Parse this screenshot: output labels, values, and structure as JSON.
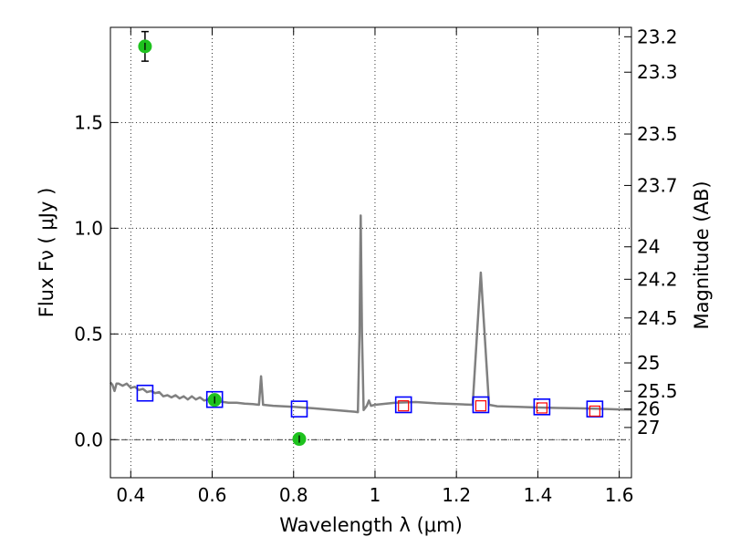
{
  "chart_data": {
    "type": "line",
    "xlabel": "Wavelength  λ (μm)",
    "ylabel": "Flux  Fν  ( μJy )",
    "ylabel_right": "Magnitude (AB)",
    "xlim": [
      0.35,
      1.63
    ],
    "ylim": [
      -0.18,
      1.95
    ],
    "grid": true,
    "x_ticks": [
      {
        "value": 0.4,
        "label": "0.4"
      },
      {
        "value": 0.6,
        "label": "0.6"
      },
      {
        "value": 0.8,
        "label": "0.8"
      },
      {
        "value": 1.0,
        "label": "1"
      },
      {
        "value": 1.2,
        "label": "1.2"
      },
      {
        "value": 1.4,
        "label": "1.4"
      },
      {
        "value": 1.6,
        "label": "1.6"
      }
    ],
    "y_ticks": [
      {
        "value": 0.0,
        "label": "0.0"
      },
      {
        "value": 0.5,
        "label": "0.5"
      },
      {
        "value": 1.0,
        "label": "1.0"
      },
      {
        "value": 1.5,
        "label": "1.5"
      }
    ],
    "mag_ticks": [
      {
        "value": 23.2,
        "label": "23.2"
      },
      {
        "value": 23.3,
        "label": "23.3"
      },
      {
        "value": 23.5,
        "label": "23.5"
      },
      {
        "value": 23.7,
        "label": "23.7"
      },
      {
        "value": 24,
        "label": "24"
      },
      {
        "value": 24.2,
        "label": "24.2"
      },
      {
        "value": 24.5,
        "label": "24.5"
      },
      {
        "value": 25,
        "label": "25"
      },
      {
        "value": 25.5,
        "label": "25.5"
      },
      {
        "value": 26,
        "label": "26"
      },
      {
        "value": 27,
        "label": "27"
      }
    ],
    "spectrum": {
      "color": "#808080",
      "points": [
        [
          0.35,
          0.27
        ],
        [
          0.355,
          0.26
        ],
        [
          0.36,
          0.23
        ],
        [
          0.365,
          0.265
        ],
        [
          0.37,
          0.265
        ],
        [
          0.38,
          0.255
        ],
        [
          0.39,
          0.265
        ],
        [
          0.4,
          0.245
        ],
        [
          0.41,
          0.25
        ],
        [
          0.42,
          0.235
        ],
        [
          0.43,
          0.24
        ],
        [
          0.44,
          0.225
        ],
        [
          0.45,
          0.23
        ],
        [
          0.46,
          0.22
        ],
        [
          0.47,
          0.225
        ],
        [
          0.48,
          0.205
        ],
        [
          0.49,
          0.21
        ],
        [
          0.5,
          0.2
        ],
        [
          0.51,
          0.21
        ],
        [
          0.52,
          0.195
        ],
        [
          0.53,
          0.205
        ],
        [
          0.54,
          0.19
        ],
        [
          0.55,
          0.205
        ],
        [
          0.56,
          0.19
        ],
        [
          0.57,
          0.2
        ],
        [
          0.58,
          0.185
        ],
        [
          0.59,
          0.19
        ],
        [
          0.6,
          0.18
        ],
        [
          0.62,
          0.18
        ],
        [
          0.64,
          0.175
        ],
        [
          0.66,
          0.175
        ],
        [
          0.68,
          0.17
        ],
        [
          0.7,
          0.168
        ],
        [
          0.715,
          0.165
        ],
        [
          0.72,
          0.3
        ],
        [
          0.725,
          0.165
        ],
        [
          0.75,
          0.16
        ],
        [
          0.8,
          0.155
        ],
        [
          0.85,
          0.148
        ],
        [
          0.9,
          0.14
        ],
        [
          0.95,
          0.132
        ],
        [
          0.958,
          0.13
        ],
        [
          0.962,
          0.5
        ],
        [
          0.965,
          1.06
        ],
        [
          0.968,
          0.5
        ],
        [
          0.972,
          0.14
        ],
        [
          0.98,
          0.16
        ],
        [
          0.985,
          0.185
        ],
        [
          0.99,
          0.16
        ],
        [
          1.0,
          0.165
        ],
        [
          1.05,
          0.175
        ],
        [
          1.1,
          0.178
        ],
        [
          1.15,
          0.172
        ],
        [
          1.2,
          0.168
        ],
        [
          1.24,
          0.165
        ],
        [
          1.26,
          0.79
        ],
        [
          1.28,
          0.165
        ],
        [
          1.3,
          0.158
        ],
        [
          1.35,
          0.155
        ],
        [
          1.4,
          0.152
        ],
        [
          1.45,
          0.15
        ],
        [
          1.5,
          0.148
        ],
        [
          1.55,
          0.146
        ],
        [
          1.6,
          0.143
        ],
        [
          1.63,
          0.142
        ]
      ]
    },
    "observed": {
      "color": "#1ec21e",
      "points": [
        {
          "x": 0.435,
          "y": 1.86,
          "err": 0.07
        },
        {
          "x": 0.606,
          "y": 0.188,
          "err": 0.02
        },
        {
          "x": 0.814,
          "y": 0.003,
          "err": 0.015
        }
      ]
    },
    "model_blue": {
      "color": "#0000ff",
      "points": [
        [
          0.435,
          0.22
        ],
        [
          0.606,
          0.19
        ],
        [
          0.814,
          0.145
        ],
        [
          1.07,
          0.165
        ],
        [
          1.26,
          0.165
        ],
        [
          1.41,
          0.155
        ],
        [
          1.54,
          0.145
        ]
      ]
    },
    "model_red": {
      "color": "#ff0000",
      "points": [
        [
          1.07,
          0.16
        ],
        [
          1.26,
          0.16
        ],
        [
          1.41,
          0.15
        ],
        [
          1.54,
          0.135
        ]
      ]
    }
  }
}
